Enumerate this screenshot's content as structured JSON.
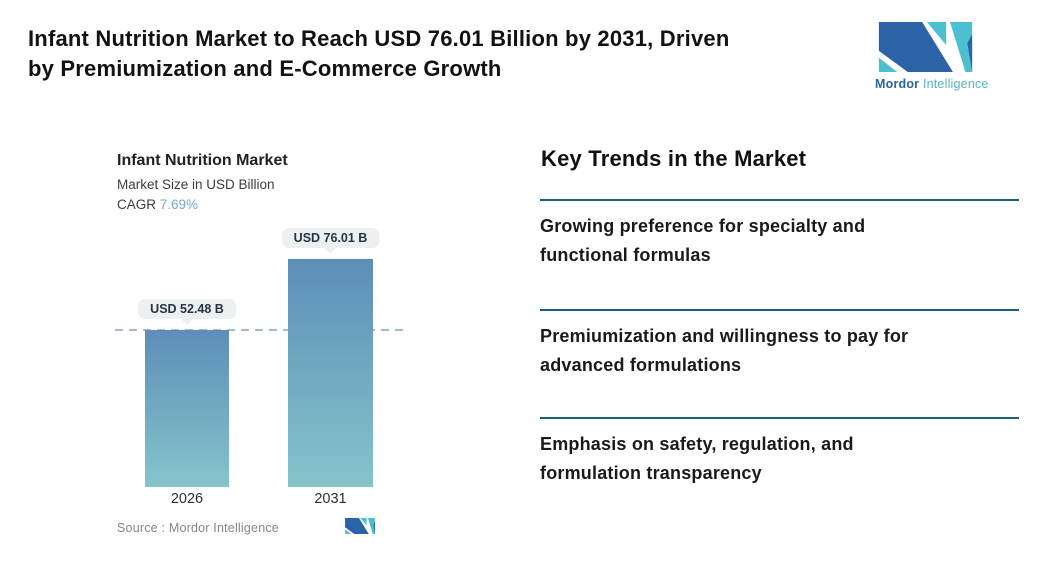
{
  "header": {
    "title_line1": "Infant Nutrition Market to Reach USD 76.01 Billion by 2031, Driven",
    "title_line2": "by Premiumization and E-Commerce Growth"
  },
  "brand": {
    "name_primary": "Mordor",
    "name_secondary": "Intelligence",
    "color_dark": "#2b63a6",
    "color_teal": "#4cc0d0"
  },
  "chart": {
    "title": "Infant Nutrition Market",
    "subtitle": "Market Size in USD Billion",
    "cagr_label": "CAGR",
    "cagr_value": "7.69%",
    "source_label": "Source :",
    "source_value": "Mordor Intelligence",
    "bars": [
      {
        "year": "2026",
        "label": "USD 52.48 B",
        "value": 52.48
      },
      {
        "year": "2031",
        "label": "USD 76.01 B",
        "value": 76.01
      }
    ],
    "colors": {
      "bar_top": "#5d8eb8",
      "bar_bottom": "#85c4cb",
      "cagr_accent": "#74a7cd",
      "dash_line": "#9fbcd4",
      "tooltip_bg": "#edf0f1"
    }
  },
  "chart_data": {
    "type": "bar",
    "categories": [
      "2026",
      "2031"
    ],
    "values": [
      52.48,
      76.01
    ],
    "data_labels": [
      "USD 52.48 B",
      "USD 76.01 B"
    ],
    "title": "Infant Nutrition Market",
    "ylabel": "Market Size in USD Billion",
    "cagr": "7.69%",
    "reference_line": 52.48,
    "legend": "none",
    "grid": "off",
    "source": "Source : Mordor Intelligence"
  },
  "trends": {
    "heading": "Key Trends in the Market",
    "divider_color": "#1b5e7d",
    "items": [
      {
        "line1": "Growing preference for specialty and",
        "line2": "functional formulas"
      },
      {
        "line1": "Premiumization and willingness to pay for",
        "line2": "advanced formulations"
      },
      {
        "line1": "Emphasis on safety, regulation, and",
        "line2": "formulation transparency"
      }
    ]
  }
}
